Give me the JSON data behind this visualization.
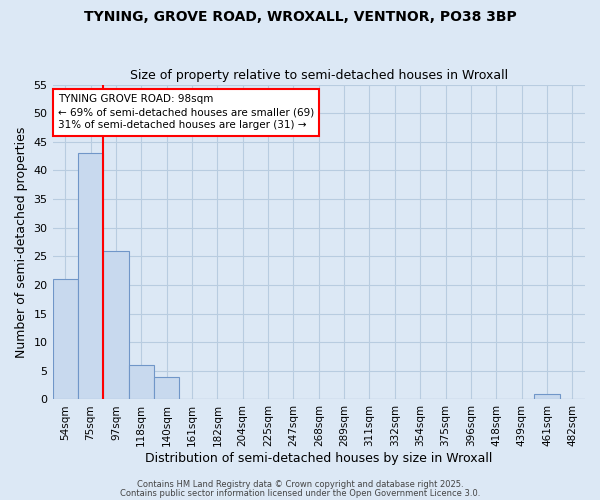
{
  "title1": "TYNING, GROVE ROAD, WROXALL, VENTNOR, PO38 3BP",
  "title2": "Size of property relative to semi-detached houses in Wroxall",
  "xlabel": "Distribution of semi-detached houses by size in Wroxall",
  "ylabel": "Number of semi-detached properties",
  "categories": [
    "54sqm",
    "75sqm",
    "97sqm",
    "118sqm",
    "140sqm",
    "161sqm",
    "182sqm",
    "204sqm",
    "225sqm",
    "247sqm",
    "268sqm",
    "289sqm",
    "311sqm",
    "332sqm",
    "354sqm",
    "375sqm",
    "396sqm",
    "418sqm",
    "439sqm",
    "461sqm",
    "482sqm"
  ],
  "values": [
    21,
    43,
    26,
    6,
    4,
    0,
    0,
    0,
    0,
    0,
    0,
    0,
    0,
    0,
    0,
    0,
    0,
    0,
    0,
    1,
    0
  ],
  "bar_color": "#c8d9ee",
  "bar_edge_color": "#7096c8",
  "grid_color": "#b8cce0",
  "bg_color": "#dce8f5",
  "property_line_after_bar": 1,
  "annotation_title": "TYNING GROVE ROAD: 98sqm",
  "annotation_line1": "← 69% of semi-detached houses are smaller (69)",
  "annotation_line2": "31% of semi-detached houses are larger (31) →",
  "ylim": [
    0,
    55
  ],
  "yticks": [
    0,
    5,
    10,
    15,
    20,
    25,
    30,
    35,
    40,
    45,
    50,
    55
  ],
  "footer1": "Contains HM Land Registry data © Crown copyright and database right 2025.",
  "footer2": "Contains public sector information licensed under the Open Government Licence 3.0."
}
